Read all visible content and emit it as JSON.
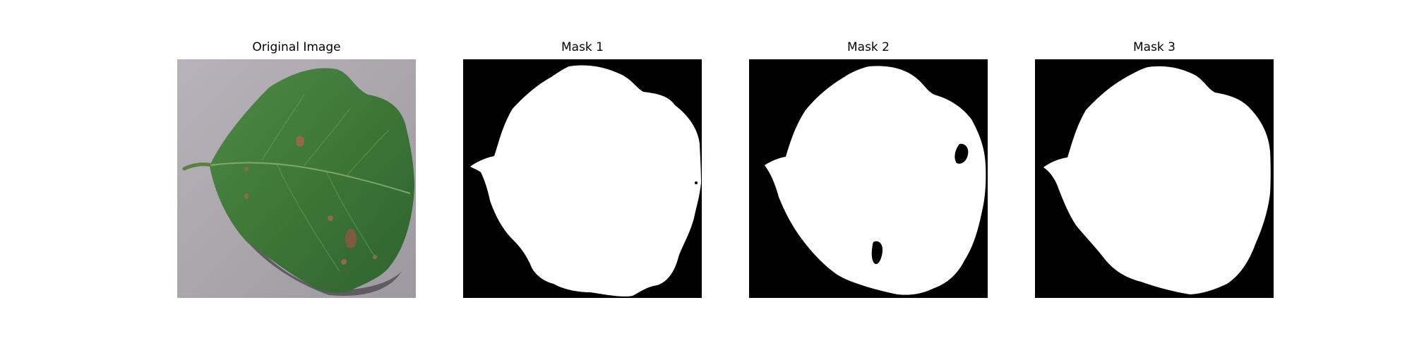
{
  "figure": {
    "panels": [
      {
        "title": "Original Image",
        "kind": "photo",
        "subject": "leaf-photo"
      },
      {
        "title": "Mask 1",
        "kind": "mask",
        "variant": "mask-1"
      },
      {
        "title": "Mask 2",
        "kind": "mask",
        "variant": "mask-2"
      },
      {
        "title": "Mask 3",
        "kind": "mask",
        "variant": "mask-3"
      }
    ],
    "colors": {
      "background": "#ffffff",
      "mask_background": "#000000",
      "mask_foreground": "#ffffff",
      "leaf_green": "#3f7a3a",
      "surface_gray": "#aeaaaf"
    }
  }
}
